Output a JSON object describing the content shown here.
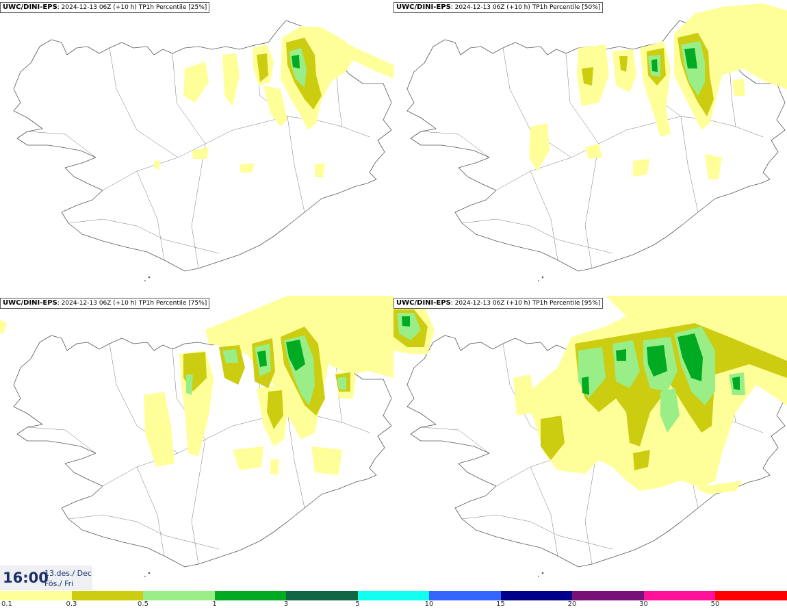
{
  "panels": [
    {
      "model": "UWC/DINI-EPS",
      "subtitle": ": 2024-12-13 06Z (+10 h) ",
      "field": "TP1h Percentile [25%]"
    },
    {
      "model": "UWC/DINI-EPS",
      "subtitle": ": 2024-12-13 06Z (+10 h) ",
      "field": "TP1h Percentile [50%]"
    },
    {
      "model": "UWC/DINI-EPS",
      "subtitle": ": 2024-12-13 06Z (+10 h) ",
      "field": "TP1h Percentile [75%]"
    },
    {
      "model": "UWC/DINI-EPS",
      "subtitle": ": 2024-12-13 06Z (+10 h) ",
      "field": "TP1h Percentile [95%]"
    }
  ],
  "valid_time": {
    "time": "16:00",
    "date_line": "13.des./ Dec",
    "day_line": "Fös./ Fri"
  },
  "legend": {
    "colors": [
      "#ffff99",
      "#cccc11",
      "#99ee88",
      "#00aa22",
      "#116644",
      "#11ffee",
      "#3366ff",
      "#000088",
      "#771177",
      "#ff1199",
      "#ff0000"
    ],
    "labels": [
      "0.1",
      "0.3",
      "0.5",
      "1",
      "3",
      "5",
      "10",
      "15",
      "20",
      "30",
      "50"
    ]
  }
}
